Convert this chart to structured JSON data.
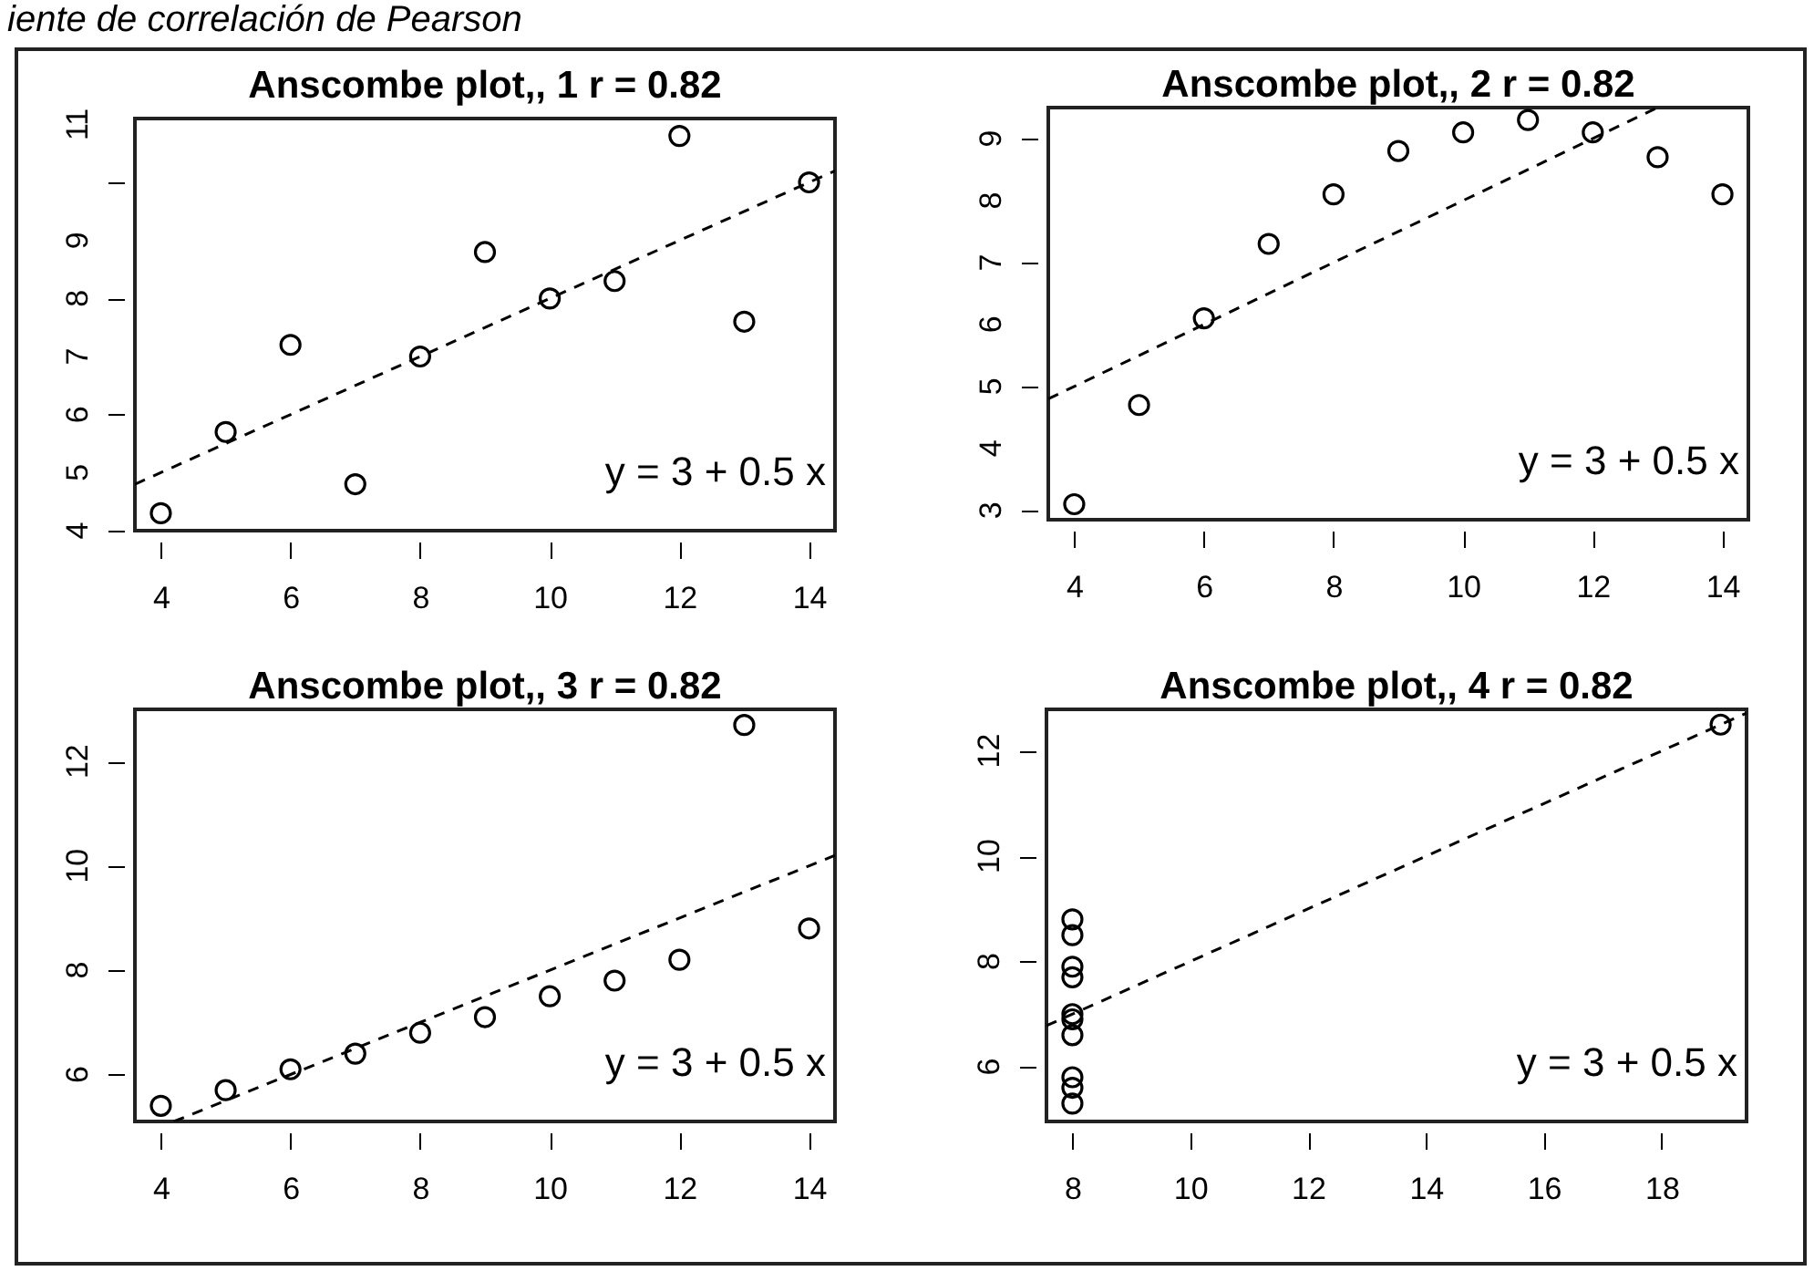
{
  "chart_data": [
    {
      "type": "other",
      "title": "iente de correlación de Pearson"
    },
    {
      "type": "scatter",
      "title": "Anscombe plot,, 1  r = 0.82",
      "marker": "circle",
      "xlim": [
        3.6,
        14.4
      ],
      "ylim": [
        4.0,
        11.1
      ],
      "xticks": [
        4,
        6,
        8,
        10,
        12,
        14
      ],
      "yticks": [
        4,
        5,
        6,
        7,
        8,
        9,
        {
          "value": 10,
          "label": null
        },
        11
      ],
      "annotations": [
        "y = 3 + 0.5 x"
      ],
      "series": [
        {
          "color": "#000000",
          "x": [
            10,
            8,
            13,
            9,
            11,
            14,
            6,
            4,
            12,
            7,
            5
          ],
          "values": [
            8.0,
            7.0,
            7.6,
            8.8,
            8.3,
            10.0,
            7.2,
            4.3,
            10.8,
            4.8,
            5.7
          ]
        },
        {
          "type": "line",
          "line_style": "dashed",
          "marker": "none",
          "color": "#000000",
          "x": [
            3.6,
            14.4
          ],
          "values": [
            4.8,
            10.2
          ]
        }
      ]
    },
    {
      "type": "scatter",
      "title": "Anscombe plot,, 2  r = 0.82",
      "marker": "circle",
      "xlim": [
        3.6,
        14.4
      ],
      "ylim": [
        2.85,
        9.5
      ],
      "xticks": [
        4,
        6,
        8,
        10,
        12,
        14
      ],
      "yticks": [
        3,
        4,
        5,
        6,
        7,
        8,
        9
      ],
      "annotations": [
        "y = 3 + 0.5 x"
      ],
      "series": [
        {
          "color": "#000000",
          "x": [
            10,
            8,
            13,
            9,
            11,
            14,
            6,
            4,
            12,
            7,
            5
          ],
          "values": [
            9.1,
            8.1,
            8.7,
            8.8,
            9.3,
            8.1,
            6.1,
            3.1,
            9.1,
            7.3,
            4.7
          ]
        },
        {
          "type": "line",
          "line_style": "dashed",
          "marker": "none",
          "color": "#000000",
          "x": [
            3.6,
            13.0
          ],
          "values": [
            4.8,
            9.5
          ]
        }
      ]
    },
    {
      "type": "scatter",
      "title": "Anscombe plot,, 3  r = 0.82",
      "marker": "circle",
      "xlim": [
        3.6,
        14.4
      ],
      "ylim": [
        5.1,
        13.0
      ],
      "xticks": [
        4,
        6,
        8,
        10,
        12,
        14
      ],
      "yticks": [
        6,
        8,
        10,
        12
      ],
      "annotations": [
        "y = 3 + 0.5 x"
      ],
      "series": [
        {
          "color": "#000000",
          "x": [
            10,
            8,
            13,
            9,
            11,
            14,
            6,
            4,
            12,
            7,
            5
          ],
          "values": [
            7.5,
            6.8,
            12.7,
            7.1,
            7.8,
            8.8,
            6.1,
            5.4,
            8.2,
            6.4,
            5.7
          ]
        },
        {
          "type": "line",
          "line_style": "dashed",
          "marker": "none",
          "color": "#000000",
          "x": [
            4.2,
            14.4
          ],
          "values": [
            5.1,
            10.2
          ]
        }
      ]
    },
    {
      "type": "scatter",
      "title": "Anscombe plot,, 4  r = 0.82",
      "marker": "circle",
      "xlim": [
        7.56,
        19.44
      ],
      "ylim": [
        4.96,
        12.79
      ],
      "xticks": [
        8,
        10,
        12,
        14,
        16,
        18
      ],
      "yticks": [
        6,
        8,
        10,
        12
      ],
      "annotations": [
        "y = 3 + 0.5 x"
      ],
      "series": [
        {
          "color": "#000000",
          "x": [
            8,
            8,
            8,
            8,
            8,
            8,
            8,
            19,
            8,
            8,
            8
          ],
          "values": [
            6.6,
            5.8,
            7.7,
            8.8,
            8.5,
            7.0,
            5.3,
            12.5,
            5.6,
            7.9,
            6.9
          ]
        },
        {
          "type": "line",
          "line_style": "dashed",
          "marker": "none",
          "color": "#000000",
          "x": [
            7.56,
            19.44
          ],
          "values": [
            6.78,
            12.72
          ]
        }
      ]
    }
  ]
}
